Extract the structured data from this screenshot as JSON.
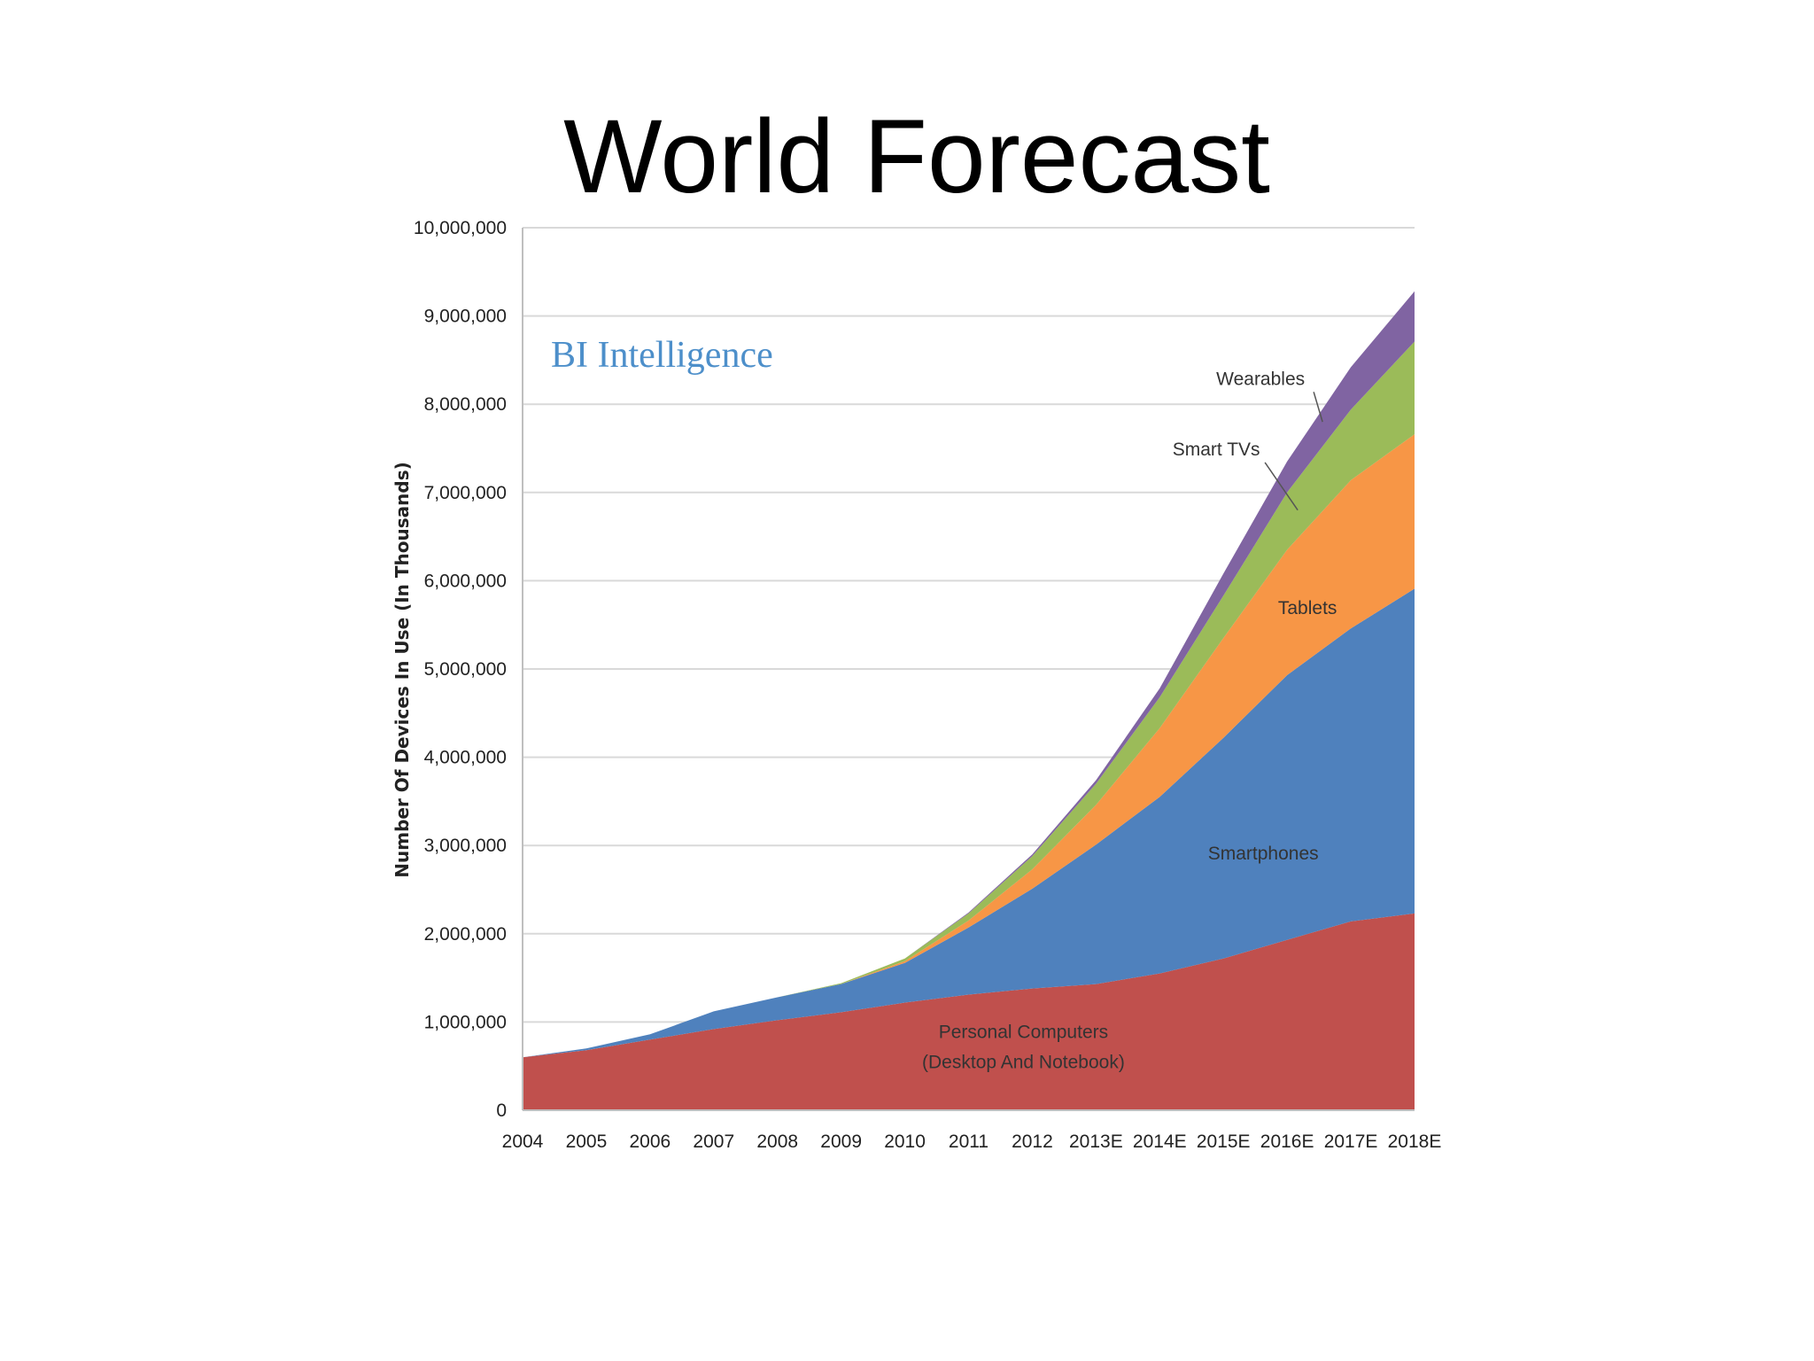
{
  "slide": {
    "title": "World Forecast"
  },
  "chart_data": {
    "type": "area",
    "stacked": true,
    "title": "",
    "xlabel": "",
    "ylabel": "Number Of Devices In Use (In Thousands)",
    "ylim": [
      0,
      10000000
    ],
    "yticks": [
      0,
      1000000,
      2000000,
      3000000,
      4000000,
      5000000,
      6000000,
      7000000,
      8000000,
      9000000,
      10000000
    ],
    "ytick_labels": [
      "0",
      "1,000,000",
      "2,000,000",
      "3,000,000",
      "4,000,000",
      "5,000,000",
      "6,000,000",
      "7,000,000",
      "8,000,000",
      "9,000,000",
      "10,000,000"
    ],
    "grid": "horizontal",
    "categories": [
      "2004",
      "2005",
      "2006",
      "2007",
      "2008",
      "2009",
      "2010",
      "2011",
      "2012",
      "2013E",
      "2014E",
      "2015E",
      "2016E",
      "2017E",
      "2018E"
    ],
    "series": [
      {
        "name": "Personal Computers (Desktop And Notebook)",
        "label_lines": [
          "Personal Computers",
          "(Desktop And Notebook)"
        ],
        "color": "#c0504d",
        "values": [
          600000,
          680000,
          800000,
          920000,
          1020000,
          1110000,
          1220000,
          1310000,
          1380000,
          1430000,
          1550000,
          1720000,
          1930000,
          2140000,
          2230000
        ]
      },
      {
        "name": "Smartphones",
        "label_lines": [
          "Smartphones"
        ],
        "color": "#4f81bd",
        "values": [
          0,
          20000,
          60000,
          200000,
          260000,
          320000,
          450000,
          760000,
          1130000,
          1580000,
          2000000,
          2500000,
          3000000,
          3320000,
          3680000
        ]
      },
      {
        "name": "Tablets",
        "label_lines": [
          "Tablets"
        ],
        "color": "#f79646",
        "values": [
          0,
          0,
          0,
          0,
          0,
          0,
          20000,
          80000,
          220000,
          450000,
          780000,
          1130000,
          1420000,
          1680000,
          1750000
        ]
      },
      {
        "name": "Smart TVs",
        "label_lines": [
          "Smart TVs"
        ],
        "color": "#9bbb59",
        "values": [
          0,
          0,
          0,
          0,
          0,
          10000,
          30000,
          80000,
          150000,
          240000,
          350000,
          480000,
          650000,
          800000,
          1050000
        ]
      },
      {
        "name": "Wearables",
        "label_lines": [
          "Wearables"
        ],
        "color": "#8064a2",
        "values": [
          0,
          0,
          0,
          0,
          0,
          0,
          0,
          10000,
          20000,
          40000,
          100000,
          250000,
          350000,
          480000,
          570000
        ]
      }
    ],
    "watermark": "BI Intelligence"
  }
}
